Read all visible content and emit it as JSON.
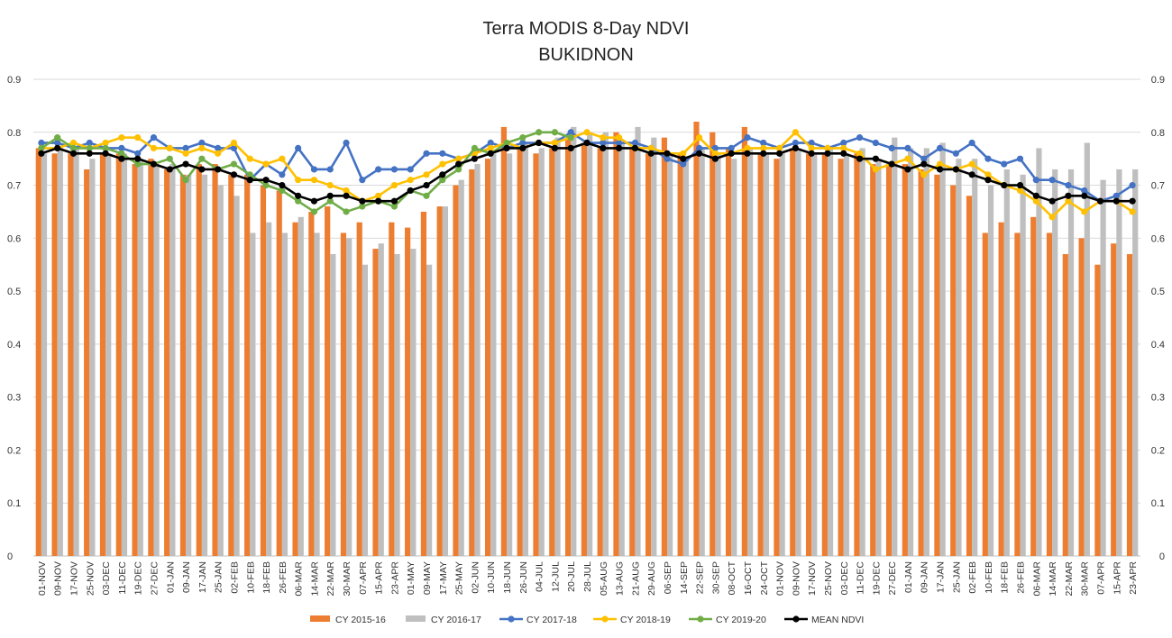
{
  "chart_data": {
    "type": "bar",
    "title": "Terra MODIS 8-Day  NDVI",
    "subtitle": "BUKIDNON",
    "xlabel": "",
    "ylabel": "",
    "ylim": [
      0,
      0.9
    ],
    "yticks": [
      "0",
      "0.1",
      "0.2",
      "0.3",
      "0.4",
      "0.5",
      "0.6",
      "0.7",
      "0.8",
      "0.9"
    ],
    "grid": true,
    "legend_position": "bottom",
    "categories": [
      "01-NOV",
      "09-NOV",
      "17-NOV",
      "25-NOV",
      "03-DEC",
      "11-DEC",
      "19-DEC",
      "27-DEC",
      "01-JAN",
      "09-JAN",
      "17-JAN",
      "25-JAN",
      "02-FEB",
      "10-FEB",
      "18-FEB",
      "26-FEB",
      "06-MAR",
      "14-MAR",
      "22-MAR",
      "30-MAR",
      "07-APR",
      "15-APR",
      "23-APR",
      "01-MAY",
      "09-MAY",
      "17-MAY",
      "25-MAY",
      "02-JUN",
      "10-JUN",
      "18-JUN",
      "26-JUN",
      "04-JUL",
      "12-JUL",
      "20-JUL",
      "28-JUL",
      "05-AUG",
      "13-AUG",
      "21-AUG",
      "29-AUG",
      "06-SEP",
      "14-SEP",
      "22-SEP",
      "30-SEP",
      "08-OCT",
      "16-OCT",
      "24-OCT",
      "01-NOV",
      "09-NOV",
      "17-NOV",
      "25-NOV",
      "03-DEC",
      "11-DEC",
      "19-DEC",
      "27-DEC",
      "01-JAN",
      "09-JAN",
      "17-JAN",
      "25-JAN",
      "02-FEB",
      "10-FEB",
      "18-FEB",
      "26-FEB",
      "06-MAR",
      "14-MAR",
      "22-MAR",
      "30-MAR",
      "07-APR",
      "15-APR",
      "23-APR"
    ],
    "series": [
      {
        "name": "CY 2015-16",
        "kind": "bar",
        "color": "#ED7D31",
        "values": [
          0.77,
          0.76,
          0.76,
          0.73,
          0.76,
          0.76,
          0.74,
          0.75,
          0.73,
          0.72,
          0.74,
          0.74,
          0.72,
          0.72,
          0.7,
          0.69,
          0.63,
          0.65,
          0.66,
          0.61,
          0.63,
          0.58,
          0.63,
          0.62,
          0.65,
          0.66,
          0.7,
          0.73,
          0.75,
          0.81,
          0.77,
          0.76,
          0.77,
          0.79,
          0.78,
          0.77,
          0.8,
          0.77,
          0.76,
          0.79,
          0.76,
          0.82,
          0.8,
          0.77,
          0.81,
          0.76,
          0.75,
          0.77,
          0.76,
          0.76,
          0.75,
          0.76,
          0.74,
          0.74,
          0.74,
          0.73,
          0.72,
          0.7,
          0.68,
          0.61,
          0.63,
          0.61,
          0.64,
          0.61,
          0.57,
          0.6,
          0.55,
          0.59,
          0.57
        ]
      },
      {
        "name": "CY 2016-17",
        "kind": "bar",
        "color": "#BFBFBF",
        "values": [
          0.76,
          0.77,
          0.77,
          0.75,
          0.76,
          0.76,
          0.75,
          0.74,
          0.74,
          0.72,
          0.72,
          0.7,
          0.68,
          0.61,
          0.63,
          0.61,
          0.64,
          0.61,
          0.57,
          0.6,
          0.55,
          0.59,
          0.57,
          0.58,
          0.55,
          0.66,
          0.71,
          0.74,
          0.76,
          0.76,
          0.78,
          0.77,
          0.79,
          0.81,
          0.8,
          0.8,
          0.78,
          0.81,
          0.79,
          0.76,
          0.75,
          0.77,
          0.76,
          0.75,
          0.77,
          0.76,
          0.76,
          0.77,
          0.76,
          0.77,
          0.76,
          0.77,
          0.75,
          0.79,
          0.77,
          0.77,
          0.78,
          0.75,
          0.75,
          0.7,
          0.73,
          0.72,
          0.77,
          0.73,
          0.73,
          0.78,
          0.71,
          0.73,
          0.73
        ]
      },
      {
        "name": "CY 2017-18",
        "kind": "line",
        "color": "#4472C4",
        "values": [
          0.78,
          0.78,
          0.77,
          0.78,
          0.77,
          0.77,
          0.76,
          0.79,
          0.77,
          0.77,
          0.78,
          0.77,
          0.77,
          0.71,
          0.74,
          0.72,
          0.77,
          0.73,
          0.73,
          0.78,
          0.71,
          0.73,
          0.73,
          0.73,
          0.76,
          0.76,
          0.75,
          0.76,
          0.78,
          0.77,
          0.78,
          0.78,
          0.78,
          0.8,
          0.78,
          0.78,
          0.78,
          0.78,
          0.77,
          0.75,
          0.74,
          0.77,
          0.77,
          0.77,
          0.79,
          0.78,
          0.77,
          0.78,
          0.78,
          0.77,
          0.78,
          0.79,
          0.78,
          0.77,
          0.77,
          0.75,
          0.77,
          0.76,
          0.78,
          0.75,
          0.74,
          0.75,
          0.71,
          0.71,
          0.7,
          0.69,
          0.67,
          0.68,
          0.7
        ]
      },
      {
        "name": "CY 2018-19",
        "kind": "line",
        "color": "#FFC000",
        "values": [
          0.77,
          0.77,
          0.78,
          0.77,
          0.78,
          0.79,
          0.79,
          0.77,
          0.77,
          0.76,
          0.77,
          0.76,
          0.78,
          0.75,
          0.74,
          0.75,
          0.71,
          0.71,
          0.7,
          0.69,
          0.67,
          0.68,
          0.7,
          0.71,
          0.72,
          0.74,
          0.75,
          0.76,
          0.77,
          0.78,
          0.77,
          0.78,
          0.78,
          0.79,
          0.8,
          0.79,
          0.79,
          0.77,
          0.77,
          0.76,
          0.76,
          0.79,
          0.76,
          0.76,
          0.77,
          0.77,
          0.77,
          0.8,
          0.77,
          0.77,
          0.77,
          0.76,
          0.73,
          0.74,
          0.75,
          0.72,
          0.74,
          0.73,
          0.74,
          0.72,
          0.7,
          0.69,
          0.67,
          0.64,
          0.67,
          0.65,
          0.67,
          0.67,
          0.65
        ]
      },
      {
        "name": "CY 2019-20",
        "kind": "line",
        "color": "#70AD47",
        "values": [
          0.77,
          0.79,
          0.77,
          0.77,
          0.77,
          0.76,
          0.74,
          0.74,
          0.75,
          0.71,
          0.75,
          0.73,
          0.74,
          0.72,
          0.7,
          0.69,
          0.67,
          0.65,
          0.67,
          0.65,
          0.66,
          0.67,
          0.66,
          0.69,
          0.68,
          0.71,
          0.73,
          0.77,
          0.76,
          0.78,
          0.79,
          0.8,
          0.8,
          0.79,
          null,
          null,
          null,
          null,
          null,
          null,
          null,
          null,
          null,
          null,
          null,
          null,
          null,
          null,
          null,
          null,
          null,
          null,
          null,
          null,
          null,
          null,
          null,
          null,
          null,
          null,
          null,
          null,
          null,
          null,
          null,
          null,
          null,
          null,
          null
        ]
      },
      {
        "name": "MEAN NDVI",
        "kind": "line",
        "color": "#000000",
        "values": [
          0.76,
          0.77,
          0.76,
          0.76,
          0.76,
          0.75,
          0.75,
          0.74,
          0.73,
          0.74,
          0.73,
          0.73,
          0.72,
          0.71,
          0.71,
          0.7,
          0.68,
          0.67,
          0.68,
          0.68,
          0.67,
          0.67,
          0.67,
          0.69,
          0.7,
          0.72,
          0.74,
          0.75,
          0.76,
          0.77,
          0.77,
          0.78,
          0.77,
          0.77,
          0.78,
          0.77,
          0.77,
          0.77,
          0.76,
          0.76,
          0.75,
          0.76,
          0.75,
          0.76,
          0.76,
          0.76,
          0.76,
          0.77,
          0.76,
          0.76,
          0.76,
          0.75,
          0.75,
          0.74,
          0.73,
          0.74,
          0.73,
          0.73,
          0.72,
          0.71,
          0.7,
          0.7,
          0.68,
          0.67,
          0.68,
          0.68,
          0.67,
          0.67,
          0.67
        ]
      }
    ]
  }
}
